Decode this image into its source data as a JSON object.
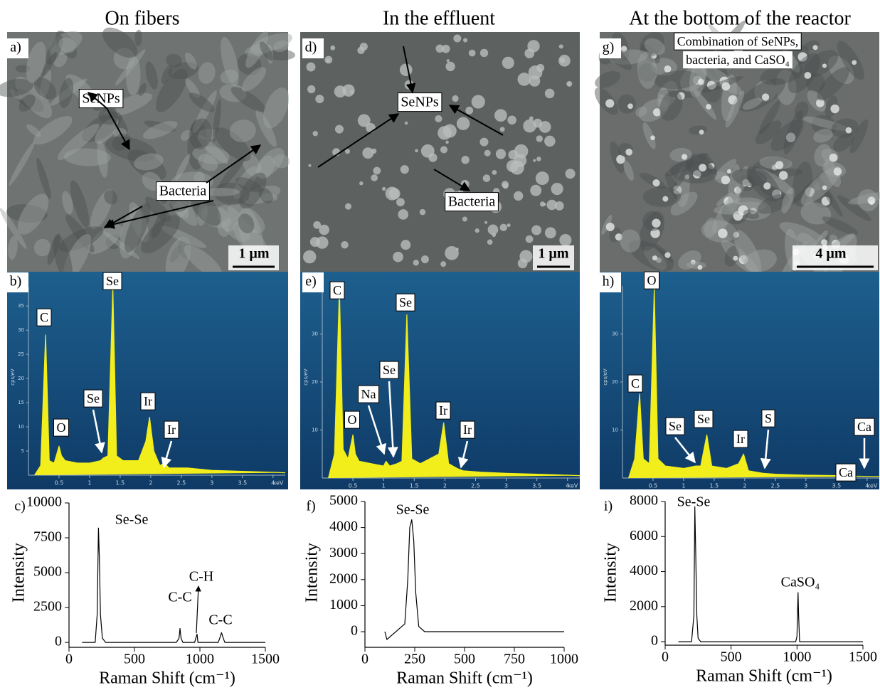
{
  "columns": [
    "On fibers",
    "In the effluent",
    "At the bottom of the reactor"
  ],
  "panel_labels": [
    "a)",
    "b)",
    "c)",
    "d)",
    "e)",
    "f)",
    "g)",
    "h)",
    "i)"
  ],
  "sem": [
    {
      "labels": [
        "SeNPs",
        "Bacteria"
      ],
      "scale_bar": "1 µm"
    },
    {
      "labels": [
        "SeNPs",
        "Bacteria"
      ],
      "scale_bar": "1 µm"
    },
    {
      "labels": [
        "Combination of SeNPs,",
        "bacteria, and CaSO₄"
      ],
      "scale_bar": "4 µm"
    }
  ],
  "chart_data": [
    {
      "type": "area",
      "color": "#f2ee1c",
      "xlabel": "keV",
      "ylabel": "cps/eV",
      "xlim": [
        0,
        4.2
      ],
      "ylim": [
        0,
        39
      ],
      "xticks": [
        0.5,
        1,
        1.5,
        2,
        2.5,
        3,
        3.5,
        4
      ],
      "yticks": [
        5,
        10,
        15,
        20,
        25,
        30,
        35
      ],
      "x": [
        0.1,
        0.2,
        0.28,
        0.34,
        0.42,
        0.5,
        0.54,
        0.6,
        0.8,
        1.0,
        1.18,
        1.22,
        1.3,
        1.38,
        1.44,
        1.55,
        1.8,
        1.92,
        1.98,
        2.05,
        2.15,
        2.22,
        2.3,
        2.6,
        3,
        3.5,
        4,
        4.2
      ],
      "values": [
        0,
        2,
        29,
        3,
        2.5,
        6,
        4,
        3,
        2.5,
        2.5,
        3,
        3.5,
        4,
        39,
        4,
        3,
        3,
        7,
        12,
        5,
        2,
        2.5,
        1.5,
        1.5,
        1,
        0.8,
        0.6,
        0.5
      ],
      "annotations": [
        "C",
        "O",
        "Se",
        "Se",
        "Ir",
        "Ir"
      ]
    },
    {
      "type": "area",
      "color": "#f2ee1c",
      "xlabel": "keV",
      "ylabel": "cps/eV",
      "xlim": [
        0,
        4.2
      ],
      "ylim": [
        0,
        40
      ],
      "xticks": [
        0.5,
        1,
        1.5,
        2,
        2.5,
        3,
        3.5,
        4
      ],
      "yticks": [
        10,
        20,
        30
      ],
      "x": [
        0.1,
        0.2,
        0.28,
        0.34,
        0.42,
        0.5,
        0.54,
        0.6,
        0.8,
        1.0,
        1.04,
        1.1,
        1.22,
        1.3,
        1.38,
        1.46,
        1.6,
        1.9,
        1.98,
        2.06,
        2.2,
        2.3,
        2.6,
        3,
        3.5,
        4,
        4.2
      ],
      "values": [
        0,
        5,
        39.5,
        6,
        4,
        9,
        5,
        3.5,
        3,
        2.5,
        3.5,
        2.5,
        3,
        3.5,
        34,
        4,
        3,
        5,
        11.5,
        3,
        2,
        1.5,
        1.2,
        1,
        0.8,
        0.6,
        0.5
      ],
      "annotations": [
        "C",
        "O",
        "Na",
        "Se",
        "Se",
        "Ir",
        "Ir"
      ]
    },
    {
      "type": "area",
      "color": "#f2ee1c",
      "xlabel": "keV",
      "ylabel": "cps/eV",
      "xlim": [
        0,
        4.2
      ],
      "ylim": [
        0,
        40
      ],
      "xticks": [
        0.5,
        1,
        1.5,
        2,
        2.5,
        3,
        3.5,
        4
      ],
      "yticks": [
        10,
        20,
        30
      ],
      "x": [
        0.1,
        0.2,
        0.28,
        0.34,
        0.44,
        0.52,
        0.58,
        0.7,
        1.0,
        1.2,
        1.28,
        1.38,
        1.46,
        1.7,
        1.9,
        1.98,
        2.06,
        2.3,
        2.5,
        3,
        3.5,
        3.69,
        3.8,
        4.2
      ],
      "values": [
        0,
        4,
        17.5,
        4,
        3,
        39.5,
        4,
        2.5,
        2,
        2.5,
        2.5,
        9,
        2.5,
        2,
        3,
        5,
        1.5,
        1,
        0.8,
        0.6,
        0.5,
        1.5,
        0.4,
        0.3
      ],
      "annotations": [
        "O",
        "C",
        "Se",
        "Se",
        "Ir",
        "S",
        "Ca",
        "Ca"
      ]
    },
    {
      "type": "line",
      "color": "#000000",
      "xlabel": "Raman Shift (cm⁻¹)",
      "ylabel": "Intensity",
      "xlim": [
        0,
        1500
      ],
      "ylim": [
        -350,
        10000
      ],
      "xticks": [
        0,
        500,
        1000,
        1500
      ],
      "yticks": [
        0,
        2500,
        5000,
        7500,
        10000
      ],
      "x": [
        100,
        200,
        215,
        225,
        232,
        240,
        255,
        280,
        820,
        840,
        848,
        856,
        870,
        960,
        972,
        978,
        985,
        1000,
        1140,
        1155,
        1165,
        1175,
        1190,
        1500
      ],
      "values": [
        0,
        0,
        2000,
        8200,
        6000,
        2000,
        300,
        0,
        0,
        300,
        1000,
        300,
        0,
        0,
        400,
        600,
        0,
        0,
        0,
        400,
        700,
        400,
        0,
        0
      ],
      "annotations": [
        "Se-Se",
        "C-C",
        "C-H",
        "C-C"
      ]
    },
    {
      "type": "line",
      "color": "#000000",
      "xlabel": "Raman Shift (cm⁻¹)",
      "ylabel": "Intensity",
      "xlim": [
        0,
        1000
      ],
      "ylim": [
        -600,
        5000
      ],
      "xticks": [
        0,
        250,
        500,
        750,
        1000
      ],
      "yticks": [
        0,
        1000,
        2000,
        3000,
        4000,
        5000
      ],
      "x": [
        100,
        110,
        200,
        215,
        225,
        235,
        245,
        255,
        270,
        300,
        1000
      ],
      "values": [
        0,
        -300,
        300,
        2000,
        4000,
        4300,
        3500,
        1500,
        200,
        0,
        0
      ],
      "annotations": [
        "Se-Se"
      ]
    },
    {
      "type": "line",
      "color": "#000000",
      "xlabel": "Raman Shift (cm⁻¹)",
      "ylabel": "Intensity",
      "xlim": [
        0,
        1500
      ],
      "ylim": [
        -200,
        8000
      ],
      "xticks": [
        0,
        500,
        1000,
        1500
      ],
      "yticks": [
        0,
        2000,
        4000,
        6000,
        8000
      ],
      "x": [
        100,
        200,
        218,
        225,
        232,
        240,
        250,
        270,
        990,
        1000,
        1008,
        1012,
        1020,
        1040,
        1500
      ],
      "values": [
        0,
        0,
        1500,
        7700,
        5000,
        1500,
        200,
        0,
        0,
        300,
        2800,
        1500,
        0,
        0,
        0
      ],
      "annotations": [
        "Se-Se",
        "CaSO₄"
      ]
    }
  ]
}
